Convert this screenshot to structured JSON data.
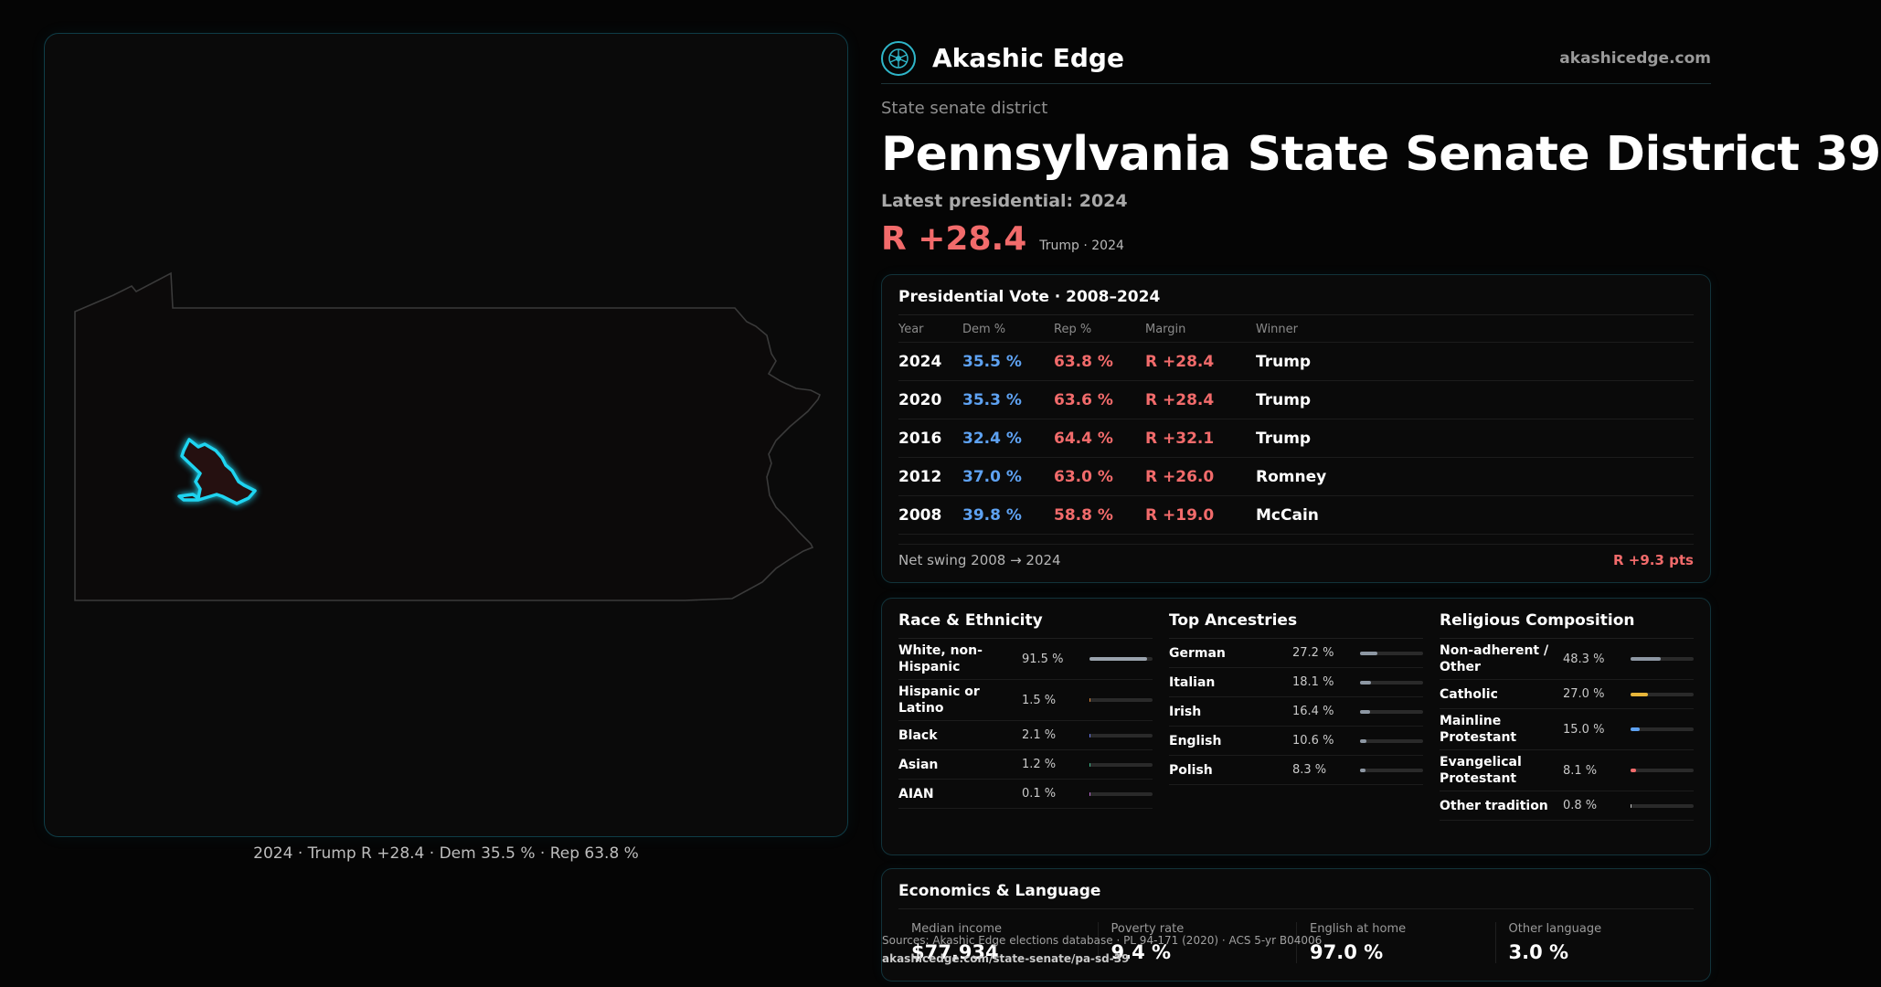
{
  "map": {
    "caption": "2024 · Trump R +28.4 · Dem 35.5 % · Rep 63.8 %"
  },
  "header": {
    "brand": "Akashic Edge",
    "site": "akashicedge.com"
  },
  "district": {
    "kicker": "State senate district",
    "title": "Pennsylvania State Senate District 39",
    "latest": "Latest presidential: 2024",
    "margin": "R +28.4",
    "margin_sub": "Trump · 2024"
  },
  "presidential": {
    "title": "Presidential Vote · 2008–2024",
    "headers": [
      "Year",
      "Dem %",
      "Rep %",
      "Margin",
      "Winner"
    ],
    "rows": [
      {
        "year": "2024",
        "dem": "35.5 %",
        "rep": "63.8 %",
        "margin": "R +28.4",
        "winner": "Trump"
      },
      {
        "year": "2020",
        "dem": "35.3 %",
        "rep": "63.6 %",
        "margin": "R +28.4",
        "winner": "Trump"
      },
      {
        "year": "2016",
        "dem": "32.4 %",
        "rep": "64.4 %",
        "margin": "R +32.1",
        "winner": "Trump"
      },
      {
        "year": "2012",
        "dem": "37.0 %",
        "rep": "63.0 %",
        "margin": "R +26.0",
        "winner": "Romney"
      },
      {
        "year": "2008",
        "dem": "39.8 %",
        "rep": "58.8 %",
        "margin": "R +19.0",
        "winner": "McCain"
      }
    ],
    "swing_label": "Net swing 2008 → 2024",
    "swing_value": "R +9.3 pts"
  },
  "race": {
    "title": "Race & Ethnicity",
    "items": [
      {
        "label": "White, non-Hispanic",
        "pct": "91.5 %",
        "fraction": 0.915,
        "color": "#9aa3ad"
      },
      {
        "label": "Hispanic or Latino",
        "pct": "1.5 %",
        "fraction": 0.015,
        "color": "#e08a3c"
      },
      {
        "label": "Black",
        "pct": "2.1 %",
        "fraction": 0.021,
        "color": "#6b7cf2"
      },
      {
        "label": "Asian",
        "pct": "1.2 %",
        "fraction": 0.012,
        "color": "#3fbf8f"
      },
      {
        "label": "AIAN",
        "pct": "0.1 %",
        "fraction": 0.001,
        "color": "#c06bd6"
      }
    ]
  },
  "ancestry": {
    "title": "Top Ancestries",
    "items": [
      {
        "label": "German",
        "pct": "27.2 %",
        "fraction": 0.272,
        "color": "#8d97a3"
      },
      {
        "label": "Italian",
        "pct": "18.1 %",
        "fraction": 0.181,
        "color": "#8d97a3"
      },
      {
        "label": "Irish",
        "pct": "16.4 %",
        "fraction": 0.164,
        "color": "#8d97a3"
      },
      {
        "label": "English",
        "pct": "10.6 %",
        "fraction": 0.106,
        "color": "#8d97a3"
      },
      {
        "label": "Polish",
        "pct": "8.3 %",
        "fraction": 0.083,
        "color": "#8d97a3"
      }
    ]
  },
  "religion": {
    "title": "Religious Composition",
    "items": [
      {
        "label": "Non-adherent / Other",
        "pct": "48.3 %",
        "fraction": 0.483,
        "color": "#8d97a3"
      },
      {
        "label": "Catholic",
        "pct": "27.0 %",
        "fraction": 0.27,
        "color": "#e8b63a"
      },
      {
        "label": "Mainline Protestant",
        "pct": "15.0 %",
        "fraction": 0.15,
        "color": "#5ea2f2"
      },
      {
        "label": "Evangelical Protestant",
        "pct": "8.1 %",
        "fraction": 0.081,
        "color": "#f26b6b"
      },
      {
        "label": "Other tradition",
        "pct": "0.8 %",
        "fraction": 0.008,
        "color": "#c9c9c9"
      }
    ]
  },
  "economics": {
    "title": "Economics & Language",
    "cells": [
      {
        "label": "Median income",
        "value": "$77,934"
      },
      {
        "label": "Poverty rate",
        "value": "9.4 %"
      },
      {
        "label": "English at home",
        "value": "97.0 %"
      },
      {
        "label": "Other language",
        "value": "3.0 %"
      }
    ],
    "sources": "Sources: Akashic Edge elections database · PL 94-171 (2020) · ACS 5-yr B04006",
    "url": "akashicedge.com/state-senate/pa-sd-39"
  }
}
